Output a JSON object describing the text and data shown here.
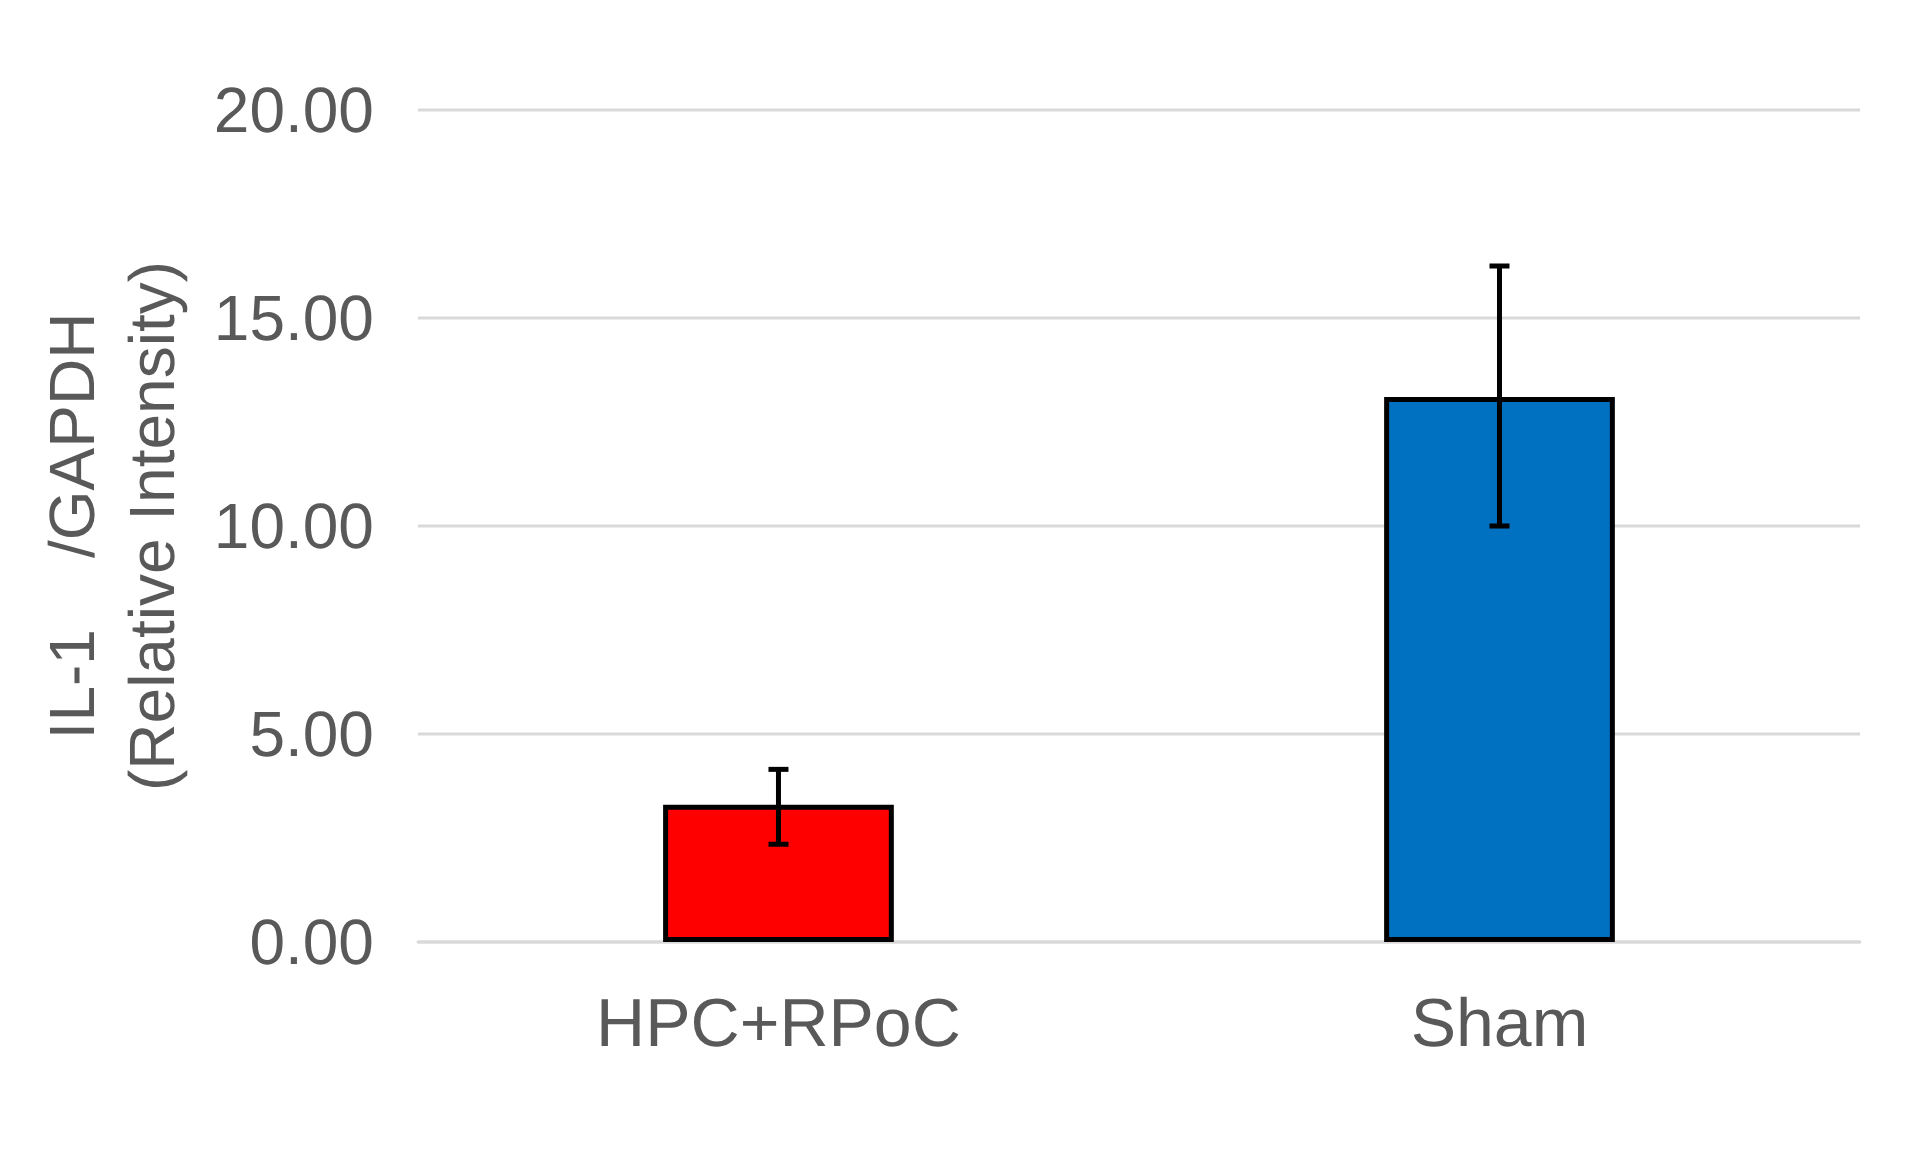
{
  "chart_data": {
    "type": "bar",
    "ylabel": "IL-1    /GAPDH\n(Relative Intensity)",
    "categories": [
      "HPC+RPoC",
      "Sham"
    ],
    "values": [
      3.3,
      13.1
    ],
    "colors": [
      "#ff0000",
      "#0070c0"
    ],
    "errors": [
      [
        2.35,
        4.15
      ],
      [
        10.0,
        16.25
      ]
    ],
    "ylim": [
      0,
      20
    ],
    "yticks": [
      {
        "value": 0,
        "label": "0.00"
      },
      {
        "value": 5,
        "label": "5.00"
      },
      {
        "value": 10,
        "label": "10.00"
      },
      {
        "value": 15,
        "label": "15.00"
      },
      {
        "value": 20,
        "label": "20.00"
      }
    ],
    "grid": "y"
  }
}
